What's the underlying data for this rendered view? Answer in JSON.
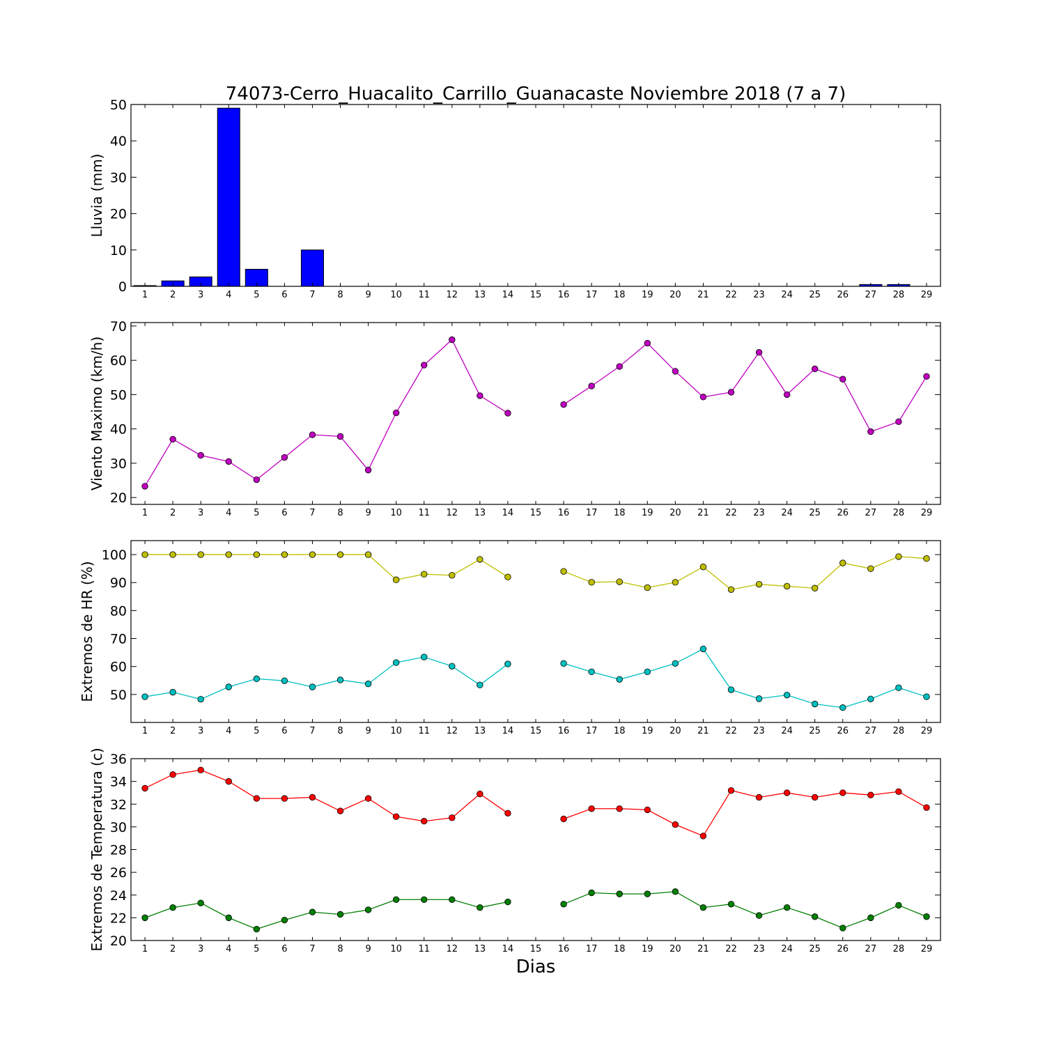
{
  "chart_data": {
    "title": "74073-Cerro_Huacalito_Carrillo_Guanacaste Noviembre 2018  (7 a 7)",
    "xlabel": "Dias",
    "x": [
      1,
      2,
      3,
      4,
      5,
      6,
      7,
      8,
      9,
      10,
      11,
      12,
      13,
      14,
      15,
      16,
      17,
      18,
      19,
      20,
      21,
      22,
      23,
      24,
      25,
      26,
      27,
      28,
      29
    ],
    "panels": [
      {
        "type": "bar",
        "ylabel": "Lluvia (mm)",
        "ylim": [
          0,
          50
        ],
        "yticks": [
          0,
          10,
          20,
          30,
          40,
          50
        ],
        "series": [
          {
            "color": "#0000ff",
            "values": [
              0.2,
              1.5,
              2.6,
              49,
              4.7,
              0,
              10,
              0,
              0,
              0,
              0,
              0,
              0,
              0,
              0,
              0,
              0,
              0,
              0,
              0,
              0,
              0,
              0,
              0,
              0,
              0,
              0.5,
              0.5,
              0
            ]
          }
        ]
      },
      {
        "type": "line",
        "ylabel": "Viento Maximo (km/h)",
        "ylim": [
          18,
          71
        ],
        "yticks": [
          20,
          30,
          40,
          50,
          60,
          70
        ],
        "series": [
          {
            "color": "#bf00bf",
            "values": [
              23.3,
              37,
              32.3,
              30.5,
              25.2,
              31.7,
              38.3,
              37.8,
              28,
              44.7,
              58.6,
              66,
              49.7,
              44.6,
              null,
              47.1,
              52.5,
              58.2,
              65,
              56.8,
              49.3,
              50.7,
              62.3,
              50,
              57.5,
              54.5,
              39.2,
              42.1,
              55.3
            ]
          }
        ]
      },
      {
        "type": "line",
        "ylabel": "Extremos de HR (%)",
        "ylim": [
          40,
          105
        ],
        "yticks": [
          50,
          60,
          70,
          80,
          90,
          100
        ],
        "series": [
          {
            "color": "#bfbf00",
            "values": [
              100,
              100,
              100,
              100,
              100,
              100,
              100,
              100,
              100,
              91,
              93,
              92.6,
              98.3,
              92,
              null,
              94,
              90.1,
              90.3,
              88.2,
              90.1,
              95.6,
              87.5,
              89.4,
              88.7,
              88,
              97,
              95,
              99.3,
              98.6
            ]
          },
          {
            "color": "#00bfbf",
            "values": [
              49.2,
              50.8,
              48.3,
              52.7,
              55.6,
              54.9,
              52.7,
              55.2,
              53.8,
              61.4,
              63.4,
              60.1,
              53.4,
              60.9,
              null,
              61.1,
              58.1,
              55.4,
              58.1,
              61.1,
              66.3,
              51.7,
              48.5,
              49.8,
              46.6,
              45.3,
              48.4,
              52.4,
              49.2
            ]
          }
        ]
      },
      {
        "type": "line",
        "ylabel": "Extremos de Temperatura (c)",
        "ylim": [
          20,
          36
        ],
        "yticks": [
          20,
          22,
          24,
          26,
          28,
          30,
          32,
          34,
          36
        ],
        "series": [
          {
            "color": "#ff0000",
            "values": [
              33.4,
              34.6,
              35,
              34,
              32.5,
              32.5,
              32.6,
              31.4,
              32.5,
              30.9,
              30.5,
              30.8,
              32.9,
              31.2,
              null,
              30.7,
              31.6,
              31.6,
              31.5,
              30.2,
              29.2,
              33.2,
              32.6,
              33,
              32.6,
              33,
              32.8,
              33.1,
              31.7
            ]
          },
          {
            "color": "#007f00",
            "values": [
              22,
              22.9,
              23.3,
              22,
              21,
              21.8,
              22.5,
              22.3,
              22.7,
              23.6,
              23.6,
              23.6,
              22.9,
              23.4,
              null,
              23.2,
              24.2,
              24.1,
              24.1,
              24.3,
              22.9,
              23.2,
              22.2,
              22.9,
              22.1,
              21.1,
              22,
              23.1,
              22.1
            ]
          }
        ]
      }
    ]
  }
}
